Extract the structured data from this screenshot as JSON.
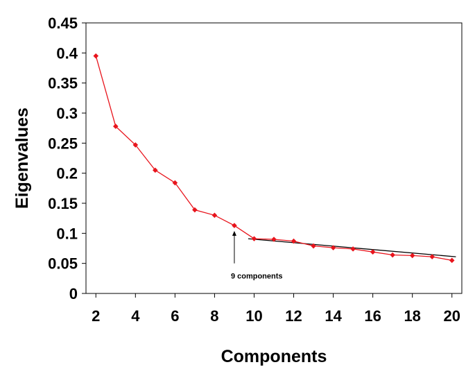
{
  "chart_data": {
    "type": "line",
    "title": "",
    "xlabel": "Components",
    "ylabel": "Eigenvalues",
    "xlim": [
      1.5,
      20.5
    ],
    "ylim": [
      0,
      0.45
    ],
    "x_ticks": [
      2,
      4,
      6,
      8,
      10,
      12,
      14,
      16,
      18,
      20
    ],
    "x_tick_labels": [
      "2",
      "4",
      "6",
      "8",
      "10",
      "12",
      "14",
      "16",
      "18",
      "20"
    ],
    "y_ticks": [
      0,
      0.05,
      0.1,
      0.15,
      0.2,
      0.25,
      0.3,
      0.35,
      0.4,
      0.45
    ],
    "y_tick_labels": [
      "0",
      "0.05",
      "0.1",
      "0.15",
      "0.2",
      "0.25",
      "0.3",
      "0.35",
      "0.4",
      "0.45"
    ],
    "grid": false,
    "series": [
      {
        "color": "#e8141c",
        "marker": "diamond",
        "x": [
          2,
          3,
          4,
          5,
          6,
          7,
          8,
          9,
          10,
          11,
          12,
          13,
          14,
          15,
          16,
          17,
          18,
          19,
          20
        ],
        "y": [
          0.395,
          0.278,
          0.247,
          0.205,
          0.184,
          0.139,
          0.13,
          0.113,
          0.091,
          0.09,
          0.087,
          0.079,
          0.076,
          0.074,
          0.069,
          0.064,
          0.063,
          0.061,
          0.055
        ]
      }
    ],
    "trend_line": {
      "color": "#000000",
      "x": [
        9.7,
        20.2
      ],
      "y": [
        0.091,
        0.061
      ]
    },
    "annotation": {
      "text": "9 components",
      "arrow_x": 9,
      "arrow_from_y": 0.05,
      "arrow_to_y": 0.104
    }
  }
}
